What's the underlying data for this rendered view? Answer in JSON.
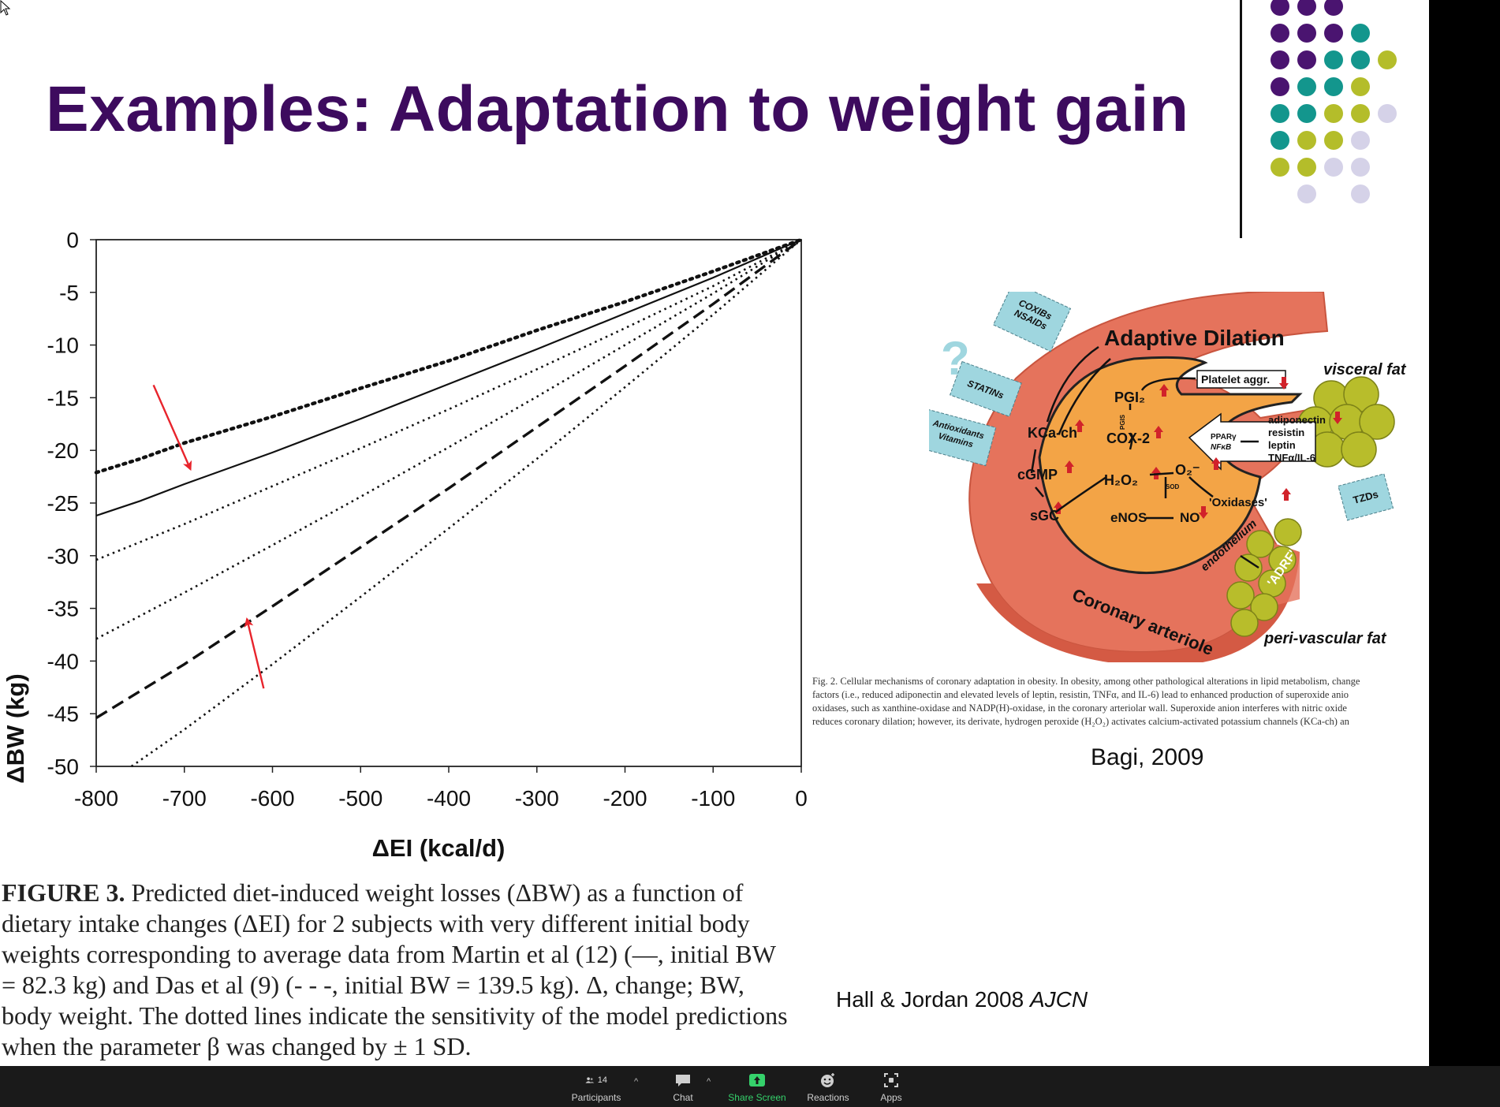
{
  "slide": {
    "title": "Examples: Adaptation to weight gain",
    "decor_colors": {
      "purple": "#4a1470",
      "teal": "#13968d",
      "olive": "#b4bd2a",
      "lavender": "#d5d2e8"
    }
  },
  "chart_data": {
    "type": "line",
    "xlabel": "ΔEI (kcal/d)",
    "ylabel": "ΔBW (kg)",
    "xlim": [
      -800,
      0
    ],
    "ylim": [
      -50,
      0
    ],
    "xticks": [
      "-800",
      "-700",
      "-600",
      "-500",
      "-400",
      "-300",
      "-200",
      "-100",
      "0"
    ],
    "yticks": [
      "0",
      "-5",
      "-10",
      "-15",
      "-20",
      "-25",
      "-30",
      "-35",
      "-40",
      "-45",
      "-50"
    ],
    "grid": false,
    "series": [
      {
        "style": "solid",
        "x": [
          -800,
          -750,
          -700,
          -600,
          -500,
          -400,
          -300,
          -200,
          -100,
          -20,
          0
        ],
        "y": [
          -26.2,
          -24.8,
          -23.2,
          -20.2,
          -17.0,
          -13.7,
          -10.4,
          -7.0,
          -3.6,
          -0.7,
          0
        ]
      },
      {
        "style": "dotted-bold",
        "x": [
          -800,
          -750,
          -700,
          -600,
          -500,
          -400,
          -300,
          -200,
          -100,
          -20,
          0
        ],
        "y": [
          -22.1,
          -20.8,
          -19.3,
          -16.8,
          -14.1,
          -11.5,
          -8.6,
          -5.9,
          -3.0,
          -0.6,
          0
        ]
      },
      {
        "style": "dotted",
        "x": [
          -800,
          -700,
          -600,
          -500,
          -400,
          -300,
          -200,
          -100,
          -20,
          0
        ],
        "y": [
          -30.4,
          -27.0,
          -23.4,
          -19.8,
          -16.1,
          -12.3,
          -8.4,
          -4.4,
          -0.9,
          0
        ]
      },
      {
        "style": "dotted",
        "x": [
          -800,
          -700,
          -600,
          -500,
          -400,
          -300,
          -200,
          -100,
          -20,
          0
        ],
        "y": [
          -37.9,
          -33.5,
          -29.0,
          -24.4,
          -19.7,
          -14.9,
          -10.0,
          -5.1,
          -1.0,
          0
        ]
      },
      {
        "style": "dashed",
        "x": [
          -800,
          -700,
          -600,
          -500,
          -400,
          -300,
          -200,
          -100,
          -20,
          0
        ],
        "y": [
          -45.4,
          -40.3,
          -34.8,
          -29.2,
          -23.6,
          -17.8,
          -12.0,
          -6.1,
          -1.2,
          0
        ]
      },
      {
        "style": "dotted",
        "x": [
          -760,
          -700,
          -600,
          -500,
          -400,
          -300,
          -200,
          -100,
          -20,
          0
        ],
        "y": [
          -50.0,
          -46.5,
          -40.3,
          -33.9,
          -27.4,
          -20.8,
          -14.0,
          -7.1,
          -1.4,
          0
        ]
      }
    ],
    "annotations": [
      {
        "type": "arrow",
        "color": "#e8242c",
        "from": [
          -735,
          -13.8
        ],
        "to": [
          -693,
          -21.8
        ]
      },
      {
        "type": "arrow",
        "color": "#e8242c",
        "from": [
          -610,
          -42.6
        ],
        "to": [
          -629,
          -36.0
        ]
      }
    ]
  },
  "caption": {
    "lines": [
      {
        "bold": "FIGURE 3.",
        "text": " Predicted diet-induced weight losses (ΔBW) as a function of"
      },
      {
        "bold": "",
        "text": "dietary intake changes (ΔEI) for 2 subjects with very different initial body"
      },
      {
        "bold": "",
        "text": "weights corresponding to average data from Martin et al (12) (—, initial BW"
      },
      {
        "bold": "",
        "text": "= 82.3 kg) and Das et al (9) (- - -, initial BW = 139.5 kg). Δ, change; BW,"
      },
      {
        "bold": "",
        "text": "body weight. The dotted lines indicate the sensitivity of the model predictions"
      },
      {
        "bold": "",
        "text": "when the parameter β was changed by ± 1 SD."
      }
    ]
  },
  "figure2": {
    "title": "Adaptive Dilation",
    "question": "?",
    "drugs": [
      "COXIBs NSAIDs",
      "STATINs",
      "Antioxidants Vitamins",
      "TZDs"
    ],
    "drug_lines": {
      "coxibs": [
        "COXIBs",
        "NSAIDs"
      ],
      "statins": [
        "STATINs"
      ],
      "antiox": [
        "Antioxidants",
        "Vitamins"
      ],
      "tzds": [
        "TZDs"
      ]
    },
    "visceral_fat": "visceral fat",
    "perivascular_fat": "peri-vascular fat",
    "coronary": "Coronary arteriole",
    "endothelium": "endothelium",
    "adrf": "'ADRF'",
    "platelet": "Platelet aggr.",
    "pgi2": "PGI₂",
    "pgis": "PGIS",
    "cox2": "COX-2",
    "kca": "KCa-ch",
    "cgmp": "cGMP",
    "sgc": "sGC",
    "h2o2": "H₂O₂",
    "sod": "SOD",
    "o2": "O₂⁻",
    "oxidases": "'Oxidases'",
    "enos": "eNOS",
    "no": "NO",
    "ppar": "PPARγ",
    "nfkb": "NFκB",
    "adipokines": [
      "adiponectin",
      "resistin",
      "leptin",
      "TNFα/IL-6"
    ]
  },
  "fig2_caption": {
    "lines": [
      "Fig. 2.  Cellular mechanisms of coronary adaptation in obesity. In obesity, among other pathological alterations in lipid metabolism, change",
      "factors (i.e., reduced adiponectin and elevated levels of leptin, resistin, TNFα, and IL-6) lead to enhanced production of superoxide anio",
      "oxidases, such as xanthine-oxidase and NADP(H)-oxidase, in the coronary arteriolar wall. Superoxide anion interferes with nitric oxide",
      "reduces coronary dilation; however, its derivate, hydrogen peroxide (H₂O₂) activates calcium-activated potassium channels (KCa-ch) an"
    ]
  },
  "citations": {
    "bagi": "Bagi, 2009",
    "hall_prefix": "Hall & Jordan 2008 ",
    "hall_journal": "AJCN"
  },
  "toolbar": {
    "participants_label": "Participants",
    "participants_count": "14",
    "chat_label": "Chat",
    "share_label": "Share Screen",
    "reactions_label": "Reactions",
    "apps_label": "Apps",
    "share_color": "#35d16b"
  }
}
